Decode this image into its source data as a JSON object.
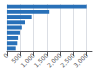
{
  "chart_data": {
    "type": "bar",
    "orientation": "horizontal",
    "categories": [
      null,
      null,
      null,
      null,
      null,
      null,
      null,
      null,
      null
    ],
    "values": [
      3000,
      1590,
      930,
      680,
      560,
      490,
      420,
      390,
      330
    ],
    "color": "#2870b8",
    "xlim": [
      0,
      3200
    ],
    "xticks": [
      0,
      500,
      {
        "value": 1000,
        "label": "1,000"
      },
      {
        "value": 1500,
        "label": "1,500"
      },
      {
        "value": 2000,
        "label": "2,000"
      },
      {
        "value": 2500,
        "label": "2,500"
      },
      {
        "value": 3000,
        "label": "3,000"
      }
    ],
    "grid": true,
    "tick_labels": "x"
  }
}
